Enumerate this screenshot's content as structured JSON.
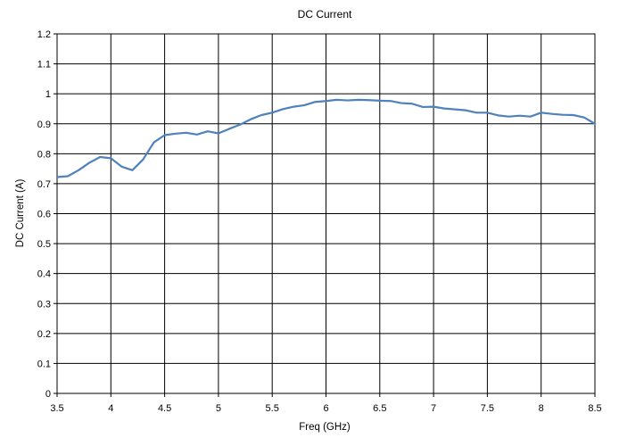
{
  "chart_data": {
    "type": "line",
    "title": "DC Current",
    "xlabel": "Freq (GHz)",
    "ylabel": "DC Current (A)",
    "xlim": [
      3.5,
      8.5
    ],
    "ylim": [
      0,
      1.2
    ],
    "x_ticks": [
      "3.5",
      "4",
      "4.5",
      "5",
      "5.5",
      "6",
      "6.5",
      "7",
      "7.5",
      "8",
      "8.5"
    ],
    "y_ticks": [
      "0",
      "0.1",
      "0.2",
      "0.3",
      "0.4",
      "0.5",
      "0.6",
      "0.7",
      "0.8",
      "0.9",
      "1",
      "1.1",
      "1.2"
    ],
    "grid": true,
    "legend": "none",
    "series": [
      {
        "color": "#4f81bd",
        "x": [
          3.5,
          3.6,
          3.7,
          3.8,
          3.9,
          4.0,
          4.1,
          4.2,
          4.3,
          4.4,
          4.5,
          4.6,
          4.7,
          4.8,
          4.9,
          5.0,
          5.1,
          5.2,
          5.3,
          5.4,
          5.5,
          5.6,
          5.7,
          5.8,
          5.9,
          6.0,
          6.1,
          6.2,
          6.3,
          6.4,
          6.5,
          6.6,
          6.7,
          6.8,
          6.9,
          7.0,
          7.1,
          7.2,
          7.3,
          7.4,
          7.5,
          7.6,
          7.7,
          7.8,
          7.9,
          8.0,
          8.1,
          8.2,
          8.3,
          8.4,
          8.5
        ],
        "values": [
          0.722,
          0.725,
          0.745,
          0.77,
          0.789,
          0.785,
          0.757,
          0.745,
          0.781,
          0.838,
          0.862,
          0.867,
          0.87,
          0.864,
          0.875,
          0.868,
          0.883,
          0.897,
          0.915,
          0.929,
          0.937,
          0.949,
          0.957,
          0.962,
          0.973,
          0.976,
          0.98,
          0.978,
          0.98,
          0.979,
          0.977,
          0.976,
          0.969,
          0.967,
          0.956,
          0.957,
          0.951,
          0.948,
          0.945,
          0.937,
          0.937,
          0.928,
          0.924,
          0.927,
          0.924,
          0.937,
          0.933,
          0.93,
          0.929,
          0.921,
          0.9
        ]
      }
    ]
  }
}
